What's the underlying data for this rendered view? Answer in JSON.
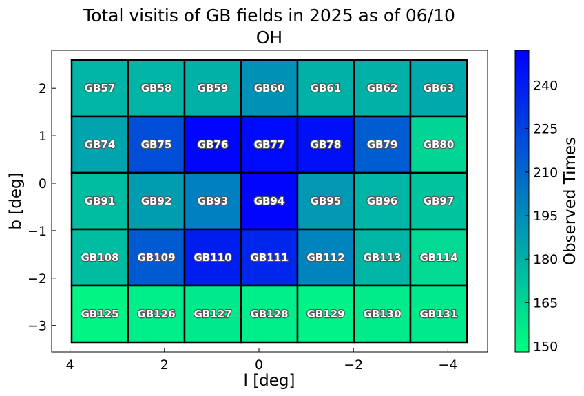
{
  "chart_data": {
    "type": "heatmap",
    "title": "Total visitis of GB fields in 2025 as of 06/10",
    "subtitle": "OH",
    "xlabel": "l [deg]",
    "ylabel": "b [deg]",
    "colorbar_label": "Observed Times",
    "x_ticks": [
      "4",
      "2",
      "0",
      "−2",
      "−4"
    ],
    "y_ticks": [
      "2",
      "1",
      "0",
      "−1",
      "−2",
      "−3"
    ],
    "colorbar_ticks": [
      "150",
      "165",
      "180",
      "195",
      "210",
      "225",
      "240"
    ],
    "colorbar_range": [
      148,
      252
    ],
    "colormap": [
      "#00ff80",
      "#0000ff"
    ],
    "rows": [
      {
        "b": 2,
        "cells": [
          {
            "name": "GB57",
            "value": 178
          },
          {
            "name": "GB58",
            "value": 178
          },
          {
            "name": "GB59",
            "value": 180
          },
          {
            "name": "GB60",
            "value": 193
          },
          {
            "name": "GB61",
            "value": 180
          },
          {
            "name": "GB62",
            "value": 180
          },
          {
            "name": "GB63",
            "value": 183
          }
        ]
      },
      {
        "b": 1,
        "cells": [
          {
            "name": "GB74",
            "value": 185
          },
          {
            "name": "GB75",
            "value": 220
          },
          {
            "name": "GB76",
            "value": 250
          },
          {
            "name": "GB77",
            "value": 248
          },
          {
            "name": "GB78",
            "value": 246
          },
          {
            "name": "GB79",
            "value": 214
          },
          {
            "name": "GB80",
            "value": 165
          }
        ]
      },
      {
        "b": 0,
        "cells": [
          {
            "name": "GB91",
            "value": 175
          },
          {
            "name": "GB92",
            "value": 188
          },
          {
            "name": "GB93",
            "value": 200
          },
          {
            "name": "GB94",
            "value": 250
          },
          {
            "name": "GB95",
            "value": 190
          },
          {
            "name": "GB96",
            "value": 178
          },
          {
            "name": "GB97",
            "value": 172
          }
        ]
      },
      {
        "b": -1,
        "cells": [
          {
            "name": "GB108",
            "value": 175
          },
          {
            "name": "GB109",
            "value": 215
          },
          {
            "name": "GB110",
            "value": 240
          },
          {
            "name": "GB111",
            "value": 237
          },
          {
            "name": "GB112",
            "value": 198
          },
          {
            "name": "GB113",
            "value": 178
          },
          {
            "name": "GB114",
            "value": 163
          }
        ]
      },
      {
        "b": -2,
        "cells": [
          {
            "name": "GB125",
            "value": 152
          },
          {
            "name": "GB126",
            "value": 155
          },
          {
            "name": "GB127",
            "value": 157
          },
          {
            "name": "GB128",
            "value": 155
          },
          {
            "name": "GB129",
            "value": 153
          },
          {
            "name": "GB130",
            "value": 156
          },
          {
            "name": "GB131",
            "value": 157
          }
        ]
      }
    ],
    "grid": false,
    "legend": "colorbar-right"
  }
}
